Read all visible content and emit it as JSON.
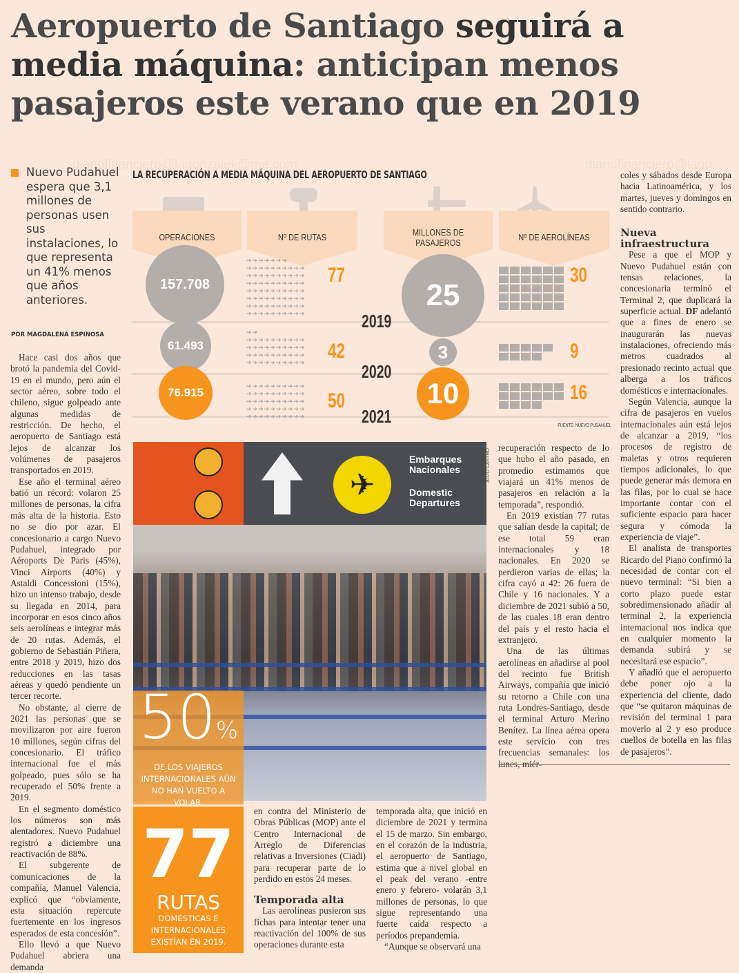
{
  "headline": {
    "part1": "Aeropuerto de Santiago ",
    "part2_bold": "seguirá a",
    "part3_bold": "media máquina",
    "part4": ": anticipan menos",
    "part5": "pasajeros este verano que en 2019"
  },
  "watermark": [
    "diariofinanciero@lagonzalek@me.com",
    "diariofinanciero@lago"
  ],
  "lede": "Nuevo Pudahuel espera que 3,1 millones de personas usen sus instalaciones, lo que representa un 41% menos que años anteriores.",
  "byline": "POR MAGDALENA ESPINOSA",
  "infographic": {
    "title": "LA RECUPERACIÓN A MEDIA MÁQUINA DEL AEROPUERTO DE SANTIAGO",
    "headers": [
      "OPERACIONES",
      "Nº DE RUTAS",
      "MILLONES DE PASAJEROS",
      "Nº DE AEROLÍNEAS"
    ],
    "years": [
      "2019",
      "2020",
      "2021"
    ],
    "operaciones": [
      "157.708",
      "61.493",
      "76.915"
    ],
    "rutas": [
      77,
      42,
      50
    ],
    "pasajeros": [
      "25",
      "3",
      "10"
    ],
    "aerolineas": [
      30,
      9,
      16
    ],
    "source": "FUENTE: NUEVO PUDAHUEL",
    "colors": {
      "accent": "#f7941d",
      "gray": "#b4aeab"
    }
  },
  "photo": {
    "sign_line1": "Embarques",
    "sign_line2": "Nacionales",
    "sign_line3": "Domestic",
    "sign_line4": "Departures",
    "credit": "JULIO CASTRO"
  },
  "callouts": {
    "stat1_number": "50",
    "stat1_unit": "%",
    "stat1_text": "DE LOS VIAJEROS INTERNACIONALES AÚN NO HAN VUELTO A VOLAR.",
    "stat2_number": "77",
    "stat2_unit": "RUTAS",
    "stat2_text": "DOMÉSTICAS E INTERNACIONALES EXISTÍAN EN 2019."
  },
  "body": {
    "col1": [
      "Hace casi dos años que brotó la pandemia del Covid-19 en el mundo, pero aún el sector aéreo, sobre todo el chileno, sigue golpeado ante algunas medidas de restricción. De hecho, el aeropuerto de Santiago está lejos de alcanzar los volúmenes de pasajeros transportados en 2019.",
      "Ese año el terminal aéreo batió un récord: volaron 25 millones de personas, la cifra más alta de la historia. Esto no se dio por azar. El concesionario a cargo Nuevo Pudahuel, integrado por Aéroports De Paris (45%), Vinci Airports (40%) y Astaldi Concessioni (15%), hizo un intenso trabajo, desde su llegada en 2014, para incorporar en esos cinco años seis aerolíneas e integrar más de 20 rutas. Además, el gobierno de Sebastián Piñera, entre 2018 y 2019, hizo dos reducciones en las tasas aéreas y quedó pendiente un tercer recorte.",
      "No obstante, al cierre de 2021 las personas que se movilizaron por aire fueron 10 millones, según cifras del concesionario. El tráfico internacional fue el más golpeado, pues sólo se ha recuperado el 50% frente a 2019.",
      "En el segmento doméstico los números son más alentadores. Nuevo Pudahuel registró a diciembre una reactivación de 88%.",
      "El subgerente de comunicaciones de la compañía, Manuel Valencia, explicó que “obviamente, esta situación repercute fuertemente en los ingresos esperados de esta concesión”.",
      "Ello llevó a que Nuevo Pudahuel abriera una demanda"
    ],
    "col2": {
      "p1": "en contra del Ministerio de Obras Públicas (MOP) ante el Centro Internacional de Arreglo de Diferencias relativas a Inversiones (Ciadi) para recuperar parte de lo perdido en estos 24 meses.",
      "heading": "Temporada alta",
      "p2": "Las aerolíneas pusieron sus fichas para intentar tener una reactivación del 100% de sus operaciones durante esta"
    },
    "col3": [
      "temporada alta, que inició en diciembre de 2021 y termina el 15 de marzo. Sin embargo, en el corazón de la industria, el aeropuerto de Santiago, estima que a nivel global en el peak del verano -entre enero y febrero- volarán 3,1 millones de personas, lo que sigue representando una fuerte caída respecto a períodos prepandemia.",
      "“Aunque se observará una"
    ],
    "col4": [
      "recuperación respecto de lo que hubo el año pasado, en promedio estimamos que viajará un 41% menos de pasajeros en relación a la temporada”, respondió.",
      "En 2019 existían 77 rutas que salían desde la capital; de ese total 59 eran internacionales y 18 nacionales. En 2020 se perdieron varias de ellas; la cifra cayó a 42: 26 fuera de Chile y 16 nacionales. Y a diciembre de 2021 subió a 50, de las cuales 18 eran dentro del país y el resto hacia el extranjero.",
      "Una de las últimas aerolíneas en añadirse al pool del recinto fue British Airways, compañía que inició su retorno a Chile con una ruta Londres-Santiago, desde el terminal Arturo Merino Benítez. La línea aérea opera este servicio con tres frecuencias semanales: los lunes, miér-"
    ],
    "col5": {
      "p1": "coles y sábados desde Europa hacia Latinoamérica, y los martes, jueves y domingos en sentido contrario.",
      "heading": "Nueva infraestructura",
      "p2": "Pese a que el MOP y Nuevo Pudahuel están con tensas relaciones, la concesionaria terminó el Terminal 2, que duplicará la superficie actual. ",
      "p2_bold": "DF",
      "p2_rest": " adelantó que a fines de enero se inaugurarán las nuevas instalaciones, ofreciendo más metros cuadrados al presionado recinto actual que alberga a los tráficos domésticos e internacionales.",
      "p3": "Según Valencia, aunque la cifra de pasajeros en vuelos internacionales aún está lejos de alcanzar a 2019, “los procesos de registro de maletas y otros requieren tiempos adicionales, lo que puede generar más demora en las filas, por lo cual se hace importante contar con el suficiente espacio para hacer segura y cómoda la experiencia de viaje”.",
      "p4": "El analista de transportes Ricardo del Piano confirmó la necesidad de contar con el nuevo terminal: “Si bien a corto plazo puede estar sobredimensionado añadir al terminal 2, la experiencia internacional nos indica que en cualquier momento la demanda subirá y se necesitará ese espacio”.",
      "p5": "Y añadió que el aeropuerto debe poner ojo a la experiencia del cliente, dado que “se quitaron máquinas de revisión del terminal 1 para moverlo al 2 y eso produce cuellos de botella en las filas de pasajeros”."
    }
  }
}
